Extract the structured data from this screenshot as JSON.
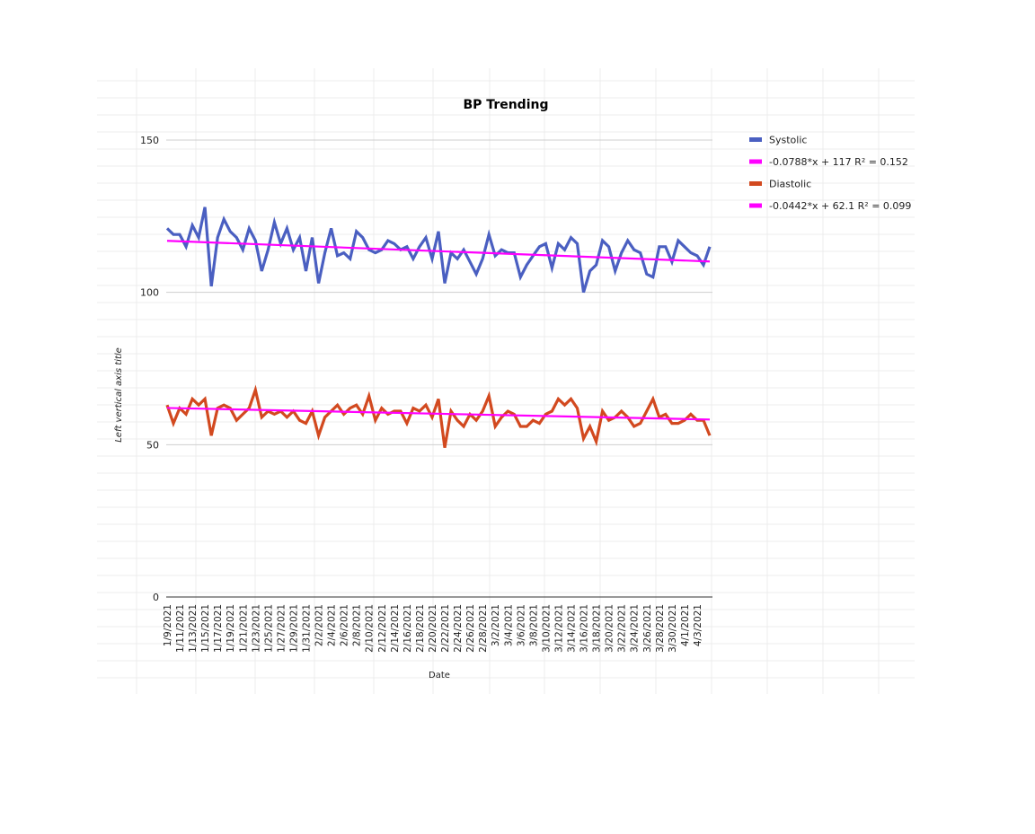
{
  "chart_data": {
    "type": "line",
    "title": "BP Trending",
    "xlabel": "Date",
    "ylabel": "Left vertical axis title",
    "ylim": [
      0,
      150
    ],
    "yticks": [
      "0",
      "50",
      "100",
      "150"
    ],
    "x_tick_labels": [
      "1/9/2021",
      "1/11/2021",
      "1/13/2021",
      "1/15/2021",
      "1/17/2021",
      "1/19/2021",
      "1/21/2021",
      "1/23/2021",
      "1/25/2021",
      "1/27/2021",
      "1/29/2021",
      "1/31/2021",
      "2/2/2021",
      "2/4/2021",
      "2/6/2021",
      "2/8/2021",
      "2/10/2021",
      "2/12/2021",
      "2/14/2021",
      "2/16/2021",
      "2/18/2021",
      "2/20/2021",
      "2/22/2021",
      "2/24/2021",
      "2/26/2021",
      "2/28/2021",
      "3/2/2021",
      "3/4/2021",
      "3/6/2021",
      "3/8/2021",
      "3/10/2021",
      "3/12/2021",
      "3/14/2021",
      "3/16/2021",
      "3/18/2021",
      "3/20/2021",
      "3/22/2021",
      "3/24/2021",
      "3/26/2021",
      "3/28/2021",
      "3/30/2021",
      "4/1/2021",
      "4/3/2021"
    ],
    "grid": true,
    "legend_position": "right",
    "series": [
      {
        "name": "Systolic",
        "color": "#4a5fc1",
        "values": [
          121,
          119,
          119,
          115,
          122,
          118,
          128,
          102,
          118,
          124,
          120,
          118,
          114,
          121,
          117,
          107,
          114,
          123,
          116,
          121,
          114,
          118,
          107,
          118,
          103,
          113,
          121,
          112,
          113,
          111,
          120,
          118,
          114,
          113,
          114,
          117,
          116,
          114,
          115,
          111,
          115,
          118,
          111,
          120,
          103,
          113,
          111,
          114,
          110,
          106,
          111,
          119,
          112,
          114,
          113,
          113,
          105,
          109,
          112,
          115,
          116,
          108,
          116,
          114,
          118,
          116,
          100,
          107,
          109,
          117,
          115,
          107,
          113,
          117,
          114,
          113,
          106,
          105,
          115,
          115,
          110,
          117,
          115,
          113,
          112,
          109,
          115
        ]
      },
      {
        "name": "Diastolic",
        "color": "#d2491f",
        "values": [
          63,
          57,
          62,
          60,
          65,
          63,
          65,
          53,
          62,
          63,
          62,
          58,
          60,
          62,
          68,
          59,
          61,
          60,
          61,
          59,
          61,
          58,
          57,
          61,
          53,
          59,
          61,
          63,
          60,
          62,
          63,
          60,
          66,
          58,
          62,
          60,
          61,
          61,
          57,
          62,
          61,
          63,
          59,
          65,
          49,
          61,
          58,
          56,
          60,
          58,
          61,
          66,
          56,
          59,
          61,
          60,
          56,
          56,
          58,
          57,
          60,
          61,
          65,
          63,
          65,
          62,
          52,
          56,
          51,
          61,
          58,
          59,
          61,
          59,
          56,
          57,
          61,
          65,
          59,
          60,
          57,
          57,
          58,
          60,
          58,
          58,
          53
        ]
      }
    ],
    "trendlines": [
      {
        "label": "-0.0788*x + 117 R² = 0.152",
        "color": "#ff00ff",
        "series": "Systolic",
        "slope": -0.0788,
        "intercept": 117
      },
      {
        "label": "-0.0442*x + 62.1 R² = 0.099",
        "color": "#ff00ff",
        "series": "Diastolic",
        "slope": -0.0442,
        "intercept": 62.1
      }
    ]
  }
}
